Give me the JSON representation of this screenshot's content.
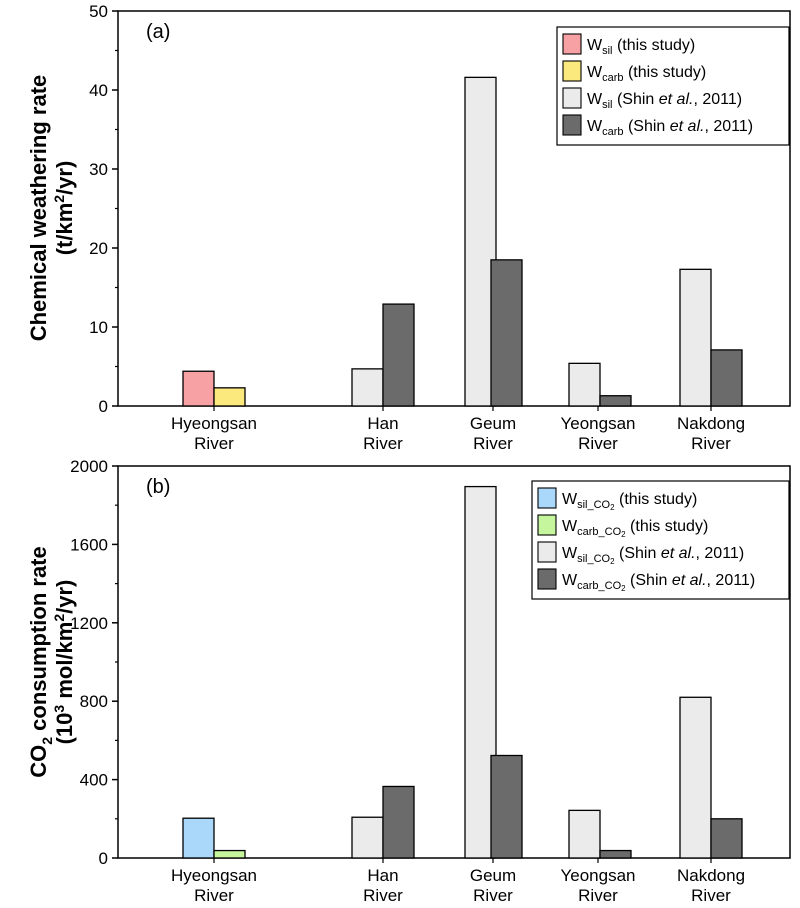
{
  "chart_data": [
    {
      "type": "bar",
      "panel_label": "(a)",
      "ylabel_line1": "Chemical weathering rate",
      "ylabel_line2_pre": "(t/km",
      "ylabel_line2_sup": "2",
      "ylabel_line2_post": "/yr)",
      "ylim": [
        0,
        50
      ],
      "yticks": [
        "0",
        "10",
        "20",
        "30",
        "40",
        "50"
      ],
      "categories": [
        {
          "line1": "Hyeongsan",
          "line2": "River"
        },
        {
          "line1": "Han",
          "line2": "River"
        },
        {
          "line1": "Geum",
          "line2": "River"
        },
        {
          "line1": "Yeongsan",
          "line2": "River"
        },
        {
          "line1": "Nakdong",
          "line2": "River"
        }
      ],
      "series": [
        {
          "name": "W_sil (this study)",
          "color": "#f7a1a5",
          "values": [
            4.4,
            null,
            null,
            null,
            null
          ]
        },
        {
          "name": "W_carb (this study)",
          "color": "#fbe97e",
          "values": [
            2.3,
            null,
            null,
            null,
            null
          ]
        },
        {
          "name": "W_sil (Shin et al., 2011)",
          "color": "#ebebeb",
          "values": [
            null,
            4.7,
            41.6,
            5.4,
            17.3
          ]
        },
        {
          "name": "W_carb (Shin et al., 2011)",
          "color": "#6b6b6b",
          "values": [
            null,
            12.9,
            18.5,
            1.3,
            7.1
          ]
        }
      ],
      "legend": [
        {
          "main": "W",
          "sub": "sil",
          "pre": " (this study)",
          "italic": "",
          "post": ""
        },
        {
          "main": "W",
          "sub": "carb",
          "pre": " (this study)",
          "italic": "",
          "post": ""
        },
        {
          "main": "W",
          "sub": "sil",
          "pre": " (Shin ",
          "italic": "et al.",
          "post": ", 2011)"
        },
        {
          "main": "W",
          "sub": "carb",
          "pre": " (Shin ",
          "italic": "et al.",
          "post": ", 2011)"
        }
      ],
      "legend_position": "top-right"
    },
    {
      "type": "bar",
      "panel_label": "(b)",
      "ylabel_line1_pre": "CO",
      "ylabel_line1_sub": "2",
      "ylabel_line1_post": " consumption rate",
      "ylabel_line2_pre": "(10",
      "ylabel_line2_sup": "3",
      "ylabel_line2_mid": " mol/km",
      "ylabel_line2_sup2": "2",
      "ylabel_line2_post": "/yr)",
      "ylim": [
        0,
        2000
      ],
      "yticks": [
        "0",
        "400",
        "800",
        "1200",
        "1600",
        "2000"
      ],
      "categories": [
        {
          "line1": "Hyeongsan",
          "line2": "River"
        },
        {
          "line1": "Han",
          "line2": "River"
        },
        {
          "line1": "Geum",
          "line2": "River"
        },
        {
          "line1": "Yeongsan",
          "line2": "River"
        },
        {
          "line1": "Nakdong",
          "line2": "River"
        }
      ],
      "series": [
        {
          "name": "W_sil_CO2 (this study)",
          "color": "#a9d8fb",
          "values": [
            203,
            null,
            null,
            null,
            null
          ]
        },
        {
          "name": "W_carb_CO2 (this study)",
          "color": "#c5f59c",
          "values": [
            38,
            null,
            null,
            null,
            null
          ]
        },
        {
          "name": "W_sil_CO2 (Shin et al., 2011)",
          "color": "#ebebeb",
          "values": [
            null,
            208,
            1895,
            243,
            820
          ]
        },
        {
          "name": "W_carb_CO2 (Shin et al., 2011)",
          "color": "#6b6b6b",
          "values": [
            null,
            365,
            523,
            38,
            200
          ]
        }
      ],
      "legend": [
        {
          "main": "W",
          "sub": "sil_CO",
          "sub2": "2",
          "pre": " (this study)",
          "italic": "",
          "post": ""
        },
        {
          "main": "W",
          "sub": "carb_CO",
          "sub2": "2",
          "pre": " (this study)",
          "italic": "",
          "post": ""
        },
        {
          "main": "W",
          "sub": "sil_CO",
          "sub2": "2",
          "pre": " (Shin ",
          "italic": "et al.",
          "post": ", 2011)"
        },
        {
          "main": "W",
          "sub": "carb_CO",
          "sub2": "2",
          "pre": " (Shin ",
          "italic": "et al.",
          "post": ", 2011)"
        }
      ],
      "legend_position": "top-right"
    }
  ]
}
